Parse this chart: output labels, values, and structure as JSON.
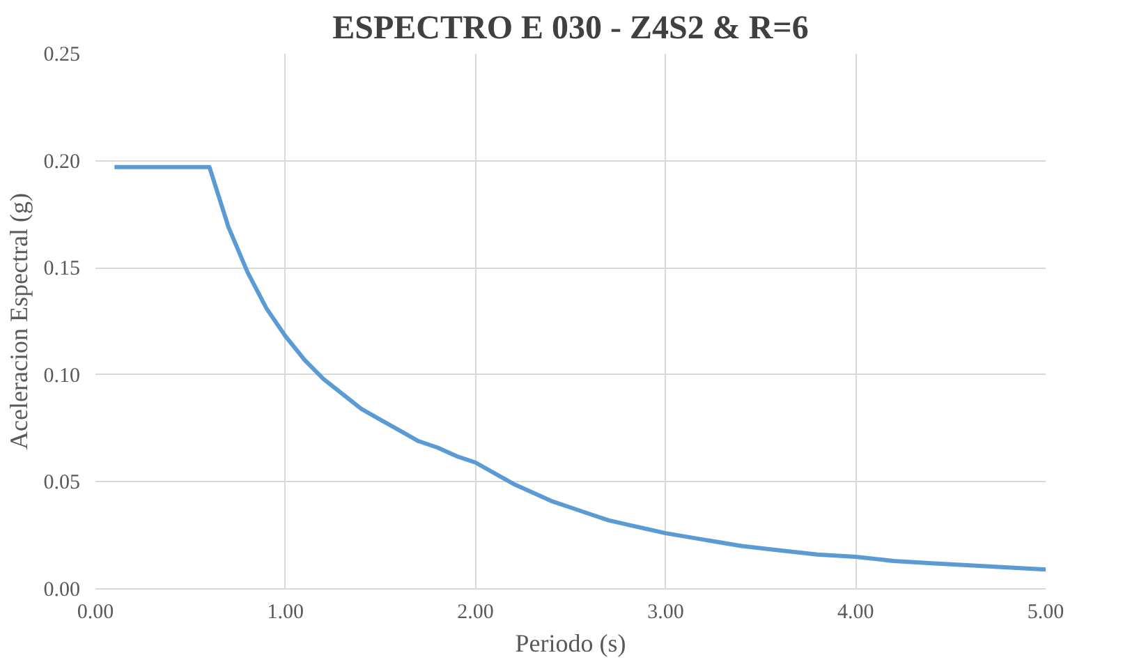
{
  "chart_data": {
    "type": "line",
    "title": "ESPECTRO E 030 - Z4S2 & R=6",
    "xlabel": "Periodo (s)",
    "ylabel": "Aceleracion Espectral (g)",
    "x": [
      0.1,
      0.2,
      0.3,
      0.4,
      0.5,
      0.6,
      0.7,
      0.8,
      0.9,
      1.0,
      1.1,
      1.2,
      1.3,
      1.4,
      1.5,
      1.6,
      1.7,
      1.8,
      1.9,
      2.0,
      2.1,
      2.2,
      2.3,
      2.4,
      2.5,
      2.6,
      2.7,
      2.8,
      2.9,
      3.0,
      3.2,
      3.4,
      3.6,
      3.8,
      4.0,
      4.2,
      4.4,
      4.6,
      4.8,
      5.0
    ],
    "series": [
      {
        "color": "#5b9bd5",
        "values": [
          0.197,
          0.197,
          0.197,
          0.197,
          0.197,
          0.197,
          0.169,
          0.148,
          0.131,
          0.118,
          0.107,
          0.098,
          0.091,
          0.084,
          0.079,
          0.074,
          0.069,
          0.066,
          0.062,
          0.059,
          0.054,
          0.049,
          0.045,
          0.041,
          0.038,
          0.035,
          0.032,
          0.03,
          0.028,
          0.026,
          0.023,
          0.02,
          0.018,
          0.016,
          0.015,
          0.013,
          0.012,
          0.011,
          0.01,
          0.009
        ]
      }
    ],
    "xlim": [
      0,
      5
    ],
    "ylim": [
      0,
      0.25
    ],
    "xticks": [
      {
        "value": 0,
        "label": "0.00"
      },
      {
        "value": 1,
        "label": "1.00"
      },
      {
        "value": 2,
        "label": "2.00"
      },
      {
        "value": 3,
        "label": "3.00"
      },
      {
        "value": 4,
        "label": "4.00"
      },
      {
        "value": 5,
        "label": "5.00"
      }
    ],
    "yticks": [
      {
        "value": 0,
        "label": "0.00"
      },
      {
        "value": 0.05,
        "label": "0.05"
      },
      {
        "value": 0.1,
        "label": "0.10"
      },
      {
        "value": 0.15,
        "label": "0.15"
      },
      {
        "value": 0.2,
        "label": "0.20"
      },
      {
        "value": 0.25,
        "label": "0.25"
      }
    ],
    "grid": true,
    "marker": "none",
    "line_style": "solid"
  }
}
